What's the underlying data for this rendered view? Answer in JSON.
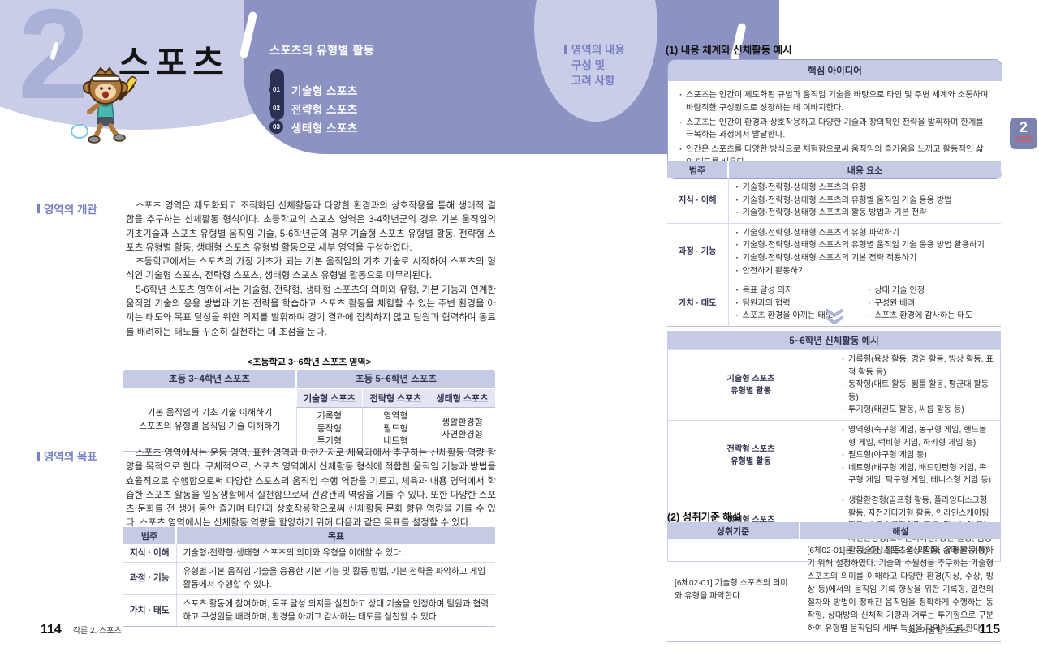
{
  "header": {
    "chapter_number": "2",
    "chapter_title": "스포츠",
    "menu_title": "스포츠의 유형별 활동",
    "menu_items": [
      {
        "num": "01",
        "label": "기술형 스포츠"
      },
      {
        "num": "02",
        "label": "전략형 스포츠"
      },
      {
        "num": "03",
        "label": "생태형 스포츠"
      }
    ]
  },
  "left_page": {
    "overview": {
      "heading": "영역의 개관",
      "paragraphs": [
        "스포츠 영역은 제도화되고 조직화된 신체활동과 다양한 환경과의 상호작용을 통해 생태적 결합을 추구하는 신체활동 형식이다. 초등학교의 스포츠 영역은 3-4학년군의 경우 기본 움직임의 기초기술과 스포츠 유형별 움직임 기술, 5-6학년군의 경우 기술형 스포츠 유형별 활동, 전략형 스포츠 유형별 활동, 생태형 스포츠 유형별 활동으로 세부 영역을 구성하였다.",
        "초등학교에서는 스포츠의 가장 기초가 되는 기본 움직임의 기초 기술로 시작하여 스포츠의 형식인 기술형 스포츠, 전략형 스포츠, 생태형 스포츠 유형별 활동으로 마무리된다.",
        "5-6학년 스포츠 영역에서는 기술형, 전략형, 생태형 스포츠의 의미와 유형, 기본 기능과 연계한 움직임 기술의 응용 방법과 기본 전략을 학습하고 스포츠 활동을 체험할 수 있는 주변 환경을 아끼는 태도와 목표 달성을 위한 의지를 발휘하며 경기 결과에 집착하지 않고 팀원과 협력하며 동료를 배려하는 태도를 꾸준히 실천하는 데 초점을 둔다."
      ]
    },
    "area_table": {
      "caption": "<초등학교 3~6학년 스포츠 영역>",
      "left_header": "초등 3~4학년 스포츠",
      "right_header": "초등 5~6학년 스포츠",
      "left_body_lines": [
        "기본 움직임의 기초 기술 이해하기",
        "스포츠의 유형별 움직임 기술 이해하기"
      ],
      "sub_columns": [
        {
          "header": "기술형 스포츠",
          "items": [
            "기록형",
            "동작형",
            "투기형"
          ]
        },
        {
          "header": "전략형 스포츠",
          "items": [
            "영역형",
            "필드형",
            "네트형"
          ]
        },
        {
          "header": "생태형 스포츠",
          "items": [
            "생활환경형",
            "자연환경형"
          ]
        }
      ]
    },
    "goal": {
      "heading": "영역의 목표",
      "paragraphs": [
        "스포츠 영역에서는 운동 영역, 표현 영역과 마찬가지로 체육과에서 추구하는 신체활동 역량 함양을 목적으로 한다. 구체적으로, 스포츠 영역에서 신체활동 형식에 적합한 움직임 기능과 방법을 효율적으로 수행함으로써 다양한 스포츠의 움직임 수행 역량을 기르고, 체육과 내용 영역에서 학습한 스포츠 활동을 일상생활에서 실천함으로써 건강관리 역량을 기를 수 있다. 또한 다양한 스포츠 문화를 전 생애 동안 즐기며 타인과 상호작용함으로써 신체활동 문화 향유 역량을 기를 수 있다. 스포츠 영역에서는 신체활동 역량을 함양하기 위해 다음과 같은 목표를 설정할 수 있다."
      ]
    },
    "goal_table": {
      "headers": [
        "범주",
        "목표"
      ],
      "rows": [
        {
          "category": "지식 · 이해",
          "text": "기술형·전략형·생태형 스포츠의 의미와 유형을 이해할 수 있다."
        },
        {
          "category": "과정 · 기능",
          "text": "유형별 기본 움직임 기술을 응용한 기본 기능 및 활동 방법, 기본 전략을 파악하고 게임 활동에서 수행할 수 있다."
        },
        {
          "category": "가치 · 태도",
          "text": "스포츠 활동에 참여하며, 목표 달성 의지를 실천하고 상대 기술을 인정하며 팀원과 협력하고 구성원을 배려하며, 환경을 아끼고 감사하는 태도를 실천할 수 있다."
        }
      ]
    },
    "footer": {
      "page_number": "114",
      "section_label": "각론 2. 스포츠"
    }
  },
  "right_page": {
    "sidebar_heading_lines": [
      "영역의 내용",
      "구성 및",
      "고려 사항"
    ],
    "section1_title": "(1) 내용 체계와 신체활동 예시",
    "core_idea_box": {
      "title": "핵심 아이디어",
      "bullets": [
        "스포츠는 인간이 제도화된 규범과 움직임 기술을 바탕으로 타인 및 주변 세계와 소통하며 바람직한 구성원으로 성장하는 데 이바지한다.",
        "스포츠는 인간이 환경과 상호작용하고 다양한 기술과 창의적인 전략을 발휘하며 한계를 극복하는 과정에서 발달한다.",
        "인간은 스포츠를 다양한 방식으로 체험함으로써 움직임의 즐거움을 느끼고 활동적인 삶의 태도를 배운다."
      ]
    },
    "content_table": {
      "headers": [
        "범주",
        "내용 요소"
      ],
      "rows": [
        {
          "category": "지식 · 이해",
          "items": [
            "기술형·전략형·생태형 스포츠의 유형",
            "기술형·전략형·생태형 스포츠의 유형별 움직임 기술 응용 방법",
            "기술형·전략형·생태형 스포츠의 활동 방법과 기본 전략"
          ]
        },
        {
          "category": "과정 · 기능",
          "items": [
            "기술형·전략형·생태형 스포츠의 유형 파악하기",
            "기술형·전략형·생태형 스포츠의 유형별 움직임 기술 응용 방법 활용하기",
            "기술형·전략형·생태형 스포츠의 기본 전략 적용하기",
            "안전하게 활동하기"
          ]
        },
        {
          "category": "가치 · 태도",
          "columns": [
            [
              "목표 달성 의지",
              "팀원과의 협력",
              "스포츠 환경을 아끼는 태도"
            ],
            [
              "상대 기술 인정",
              "구성원 배려",
              "스포츠 환경에 감사하는 태도"
            ]
          ]
        }
      ]
    },
    "activity_table": {
      "title": "5~6학년 신체활동 예시",
      "rows": [
        {
          "category_lines": [
            "기술형 스포츠",
            "유형별 활동"
          ],
          "items": [
            "기록형(육상 활동, 경영 활동, 빙상 활동, 표적 활동 등)",
            "동작형(매트 활동, 뜀틀 활동, 평균대 활동 등)",
            "투기형(태권도 활동, 씨름 활동 등)"
          ]
        },
        {
          "category_lines": [
            "전략형 스포츠",
            "유형별 활동"
          ],
          "items": [
            "영역형(축구형 게임, 농구형 게임, 핸드볼형 게임, 럭비형 게임, 하키형 게임 등)",
            "필드형(야구형 게임 등)",
            "네트형(배구형 게임, 배드민턴형 게임, 족구형 게임, 탁구형 게임, 테니스형 게임 등)"
          ]
        },
        {
          "category_lines": [
            "생태형 스포츠",
            "유형별 활동"
          ],
          "items": [
            "생활환경형(골프형 활동, 플라잉디스크형 활동, 자전거타기형 활동, 인라인스케이팅 활동, 스포츠클라이밍 활동, 민속놀이 등)",
            "자연환경형(오리엔티어링, 등산 활동, 캠핑 활동, 수상 활동, 설상 활동, 승마 활동 등)"
          ]
        }
      ]
    },
    "section2_title": "(2) 성취기준 해설",
    "standards_table": {
      "headers": [
        "성취기준",
        "해설"
      ],
      "rows": [
        {
          "standard": "[6체02-01] 기술형 스포츠의 의미와 유형을 파악한다.",
          "explanation": "[6체02-01]은 기술형 스포츠의 의미와 유형을 이해하기 위해 설정하였다. 기술의 수월성을 추구하는 기술형 스포츠의 의미를 이해하고 다양한 환경(지상, 수상, 빙상 등)에서의 움직임 기록 향상을 위한 기록형, 일련의 절차와 방법이 정해진 움직임을 정확하게 수행하는 동작형, 상대방의 신체적 기량과 겨루는 투기형으로 구분하여 유형별 움직임의 세부 특성을 파악하도록 한다."
        }
      ]
    },
    "footer": {
      "section_label": "01. 기술형 스포츠",
      "page_number": "115"
    },
    "edge_tab": {
      "number": "2",
      "label": "스포츠"
    }
  },
  "colors": {
    "wave_light": "#c9cde8",
    "wave_dark": "#8c93c3",
    "chapter_number": "#aab1d8",
    "menu_badge_navy": "#2c3053",
    "table_header_bg": "#c5cbe4",
    "table_subheader_bg": "#e4e6f3",
    "heading_purple": "#7880c2",
    "edge_tab_bg": "#7b82af",
    "edge_tab_label": "#e85440"
  }
}
